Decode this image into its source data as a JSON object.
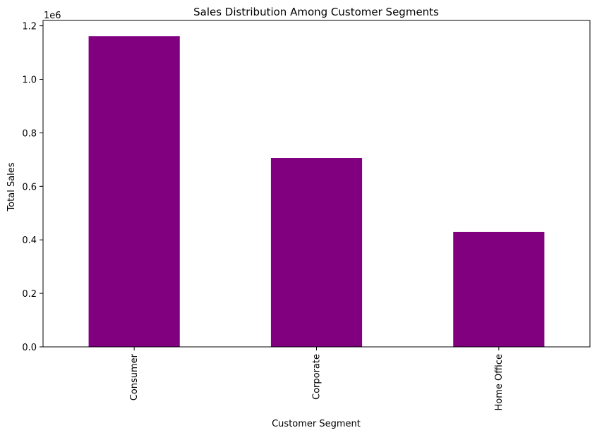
{
  "chart_data": {
    "type": "bar",
    "title": "Sales Distribution Among Customer Segments",
    "xlabel": "Customer Segment",
    "ylabel": "Total Sales",
    "y_offset_label": "1e6",
    "categories": [
      "Consumer",
      "Corporate",
      "Home Office"
    ],
    "values": [
      1161401,
      706146,
      429653
    ],
    "ylim": [
      0,
      1220000
    ],
    "yticks": [
      0,
      200000,
      400000,
      600000,
      800000,
      1000000,
      1200000
    ],
    "ytick_labels": [
      "0.0",
      "0.2",
      "0.4",
      "0.6",
      "0.8",
      "1.0",
      "1.2"
    ],
    "bar_color": "#800080",
    "grid": false,
    "legend": "none"
  }
}
